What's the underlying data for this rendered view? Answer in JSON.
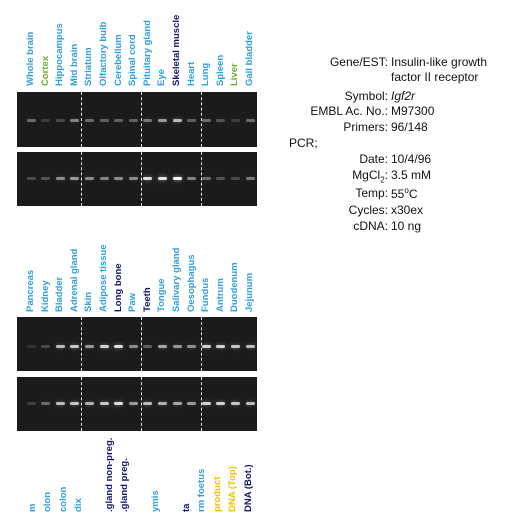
{
  "colors": {
    "blue": "#2f9fe0",
    "green": "#6fae2f",
    "navy": "#14146e",
    "gold": "#f2c200",
    "gel_bg": "#1b1b1b",
    "band": "#ffffff"
  },
  "panel_top": {
    "lanes": [
      {
        "label": "Whole brain",
        "color": "blue"
      },
      {
        "label": "Cortex",
        "color": "green"
      },
      {
        "label": "Hippocampus",
        "color": "blue"
      },
      {
        "label": "Mid brain",
        "color": "blue"
      },
      {
        "label": "Striatum",
        "color": "blue"
      },
      {
        "label": "Olfactory bulb",
        "color": "blue"
      },
      {
        "label": "Cerebellum",
        "color": "blue"
      },
      {
        "label": "Spinal cord",
        "color": "blue"
      },
      {
        "label": "Pituitary gland",
        "color": "blue"
      },
      {
        "label": "Eye",
        "color": "blue"
      },
      {
        "label": "Skeletal muscle",
        "color": "navy"
      },
      {
        "label": "Heart",
        "color": "blue"
      },
      {
        "label": "Lung",
        "color": "blue"
      },
      {
        "label": "Spleen",
        "color": "blue"
      },
      {
        "label": "Liver",
        "color": "green"
      },
      {
        "label": "Gall bladder",
        "color": "blue"
      }
    ],
    "gel1_intensity": [
      0.35,
      0.15,
      0.2,
      0.45,
      0.35,
      0.3,
      0.3,
      0.3,
      0.4,
      0.55,
      0.7,
      0.3,
      0.35,
      0.25,
      0.15,
      0.35
    ],
    "gel2_intensity": [
      0.2,
      0.25,
      0.5,
      0.55,
      0.5,
      0.45,
      0.5,
      0.5,
      0.85,
      0.9,
      1.0,
      0.45,
      0.35,
      0.25,
      0.2,
      0.4
    ]
  },
  "panel_bottom": {
    "lanes": [
      {
        "label": "Pancreas",
        "color": "blue"
      },
      {
        "label": "Kidney",
        "color": "blue"
      },
      {
        "label": "Bladder",
        "color": "blue"
      },
      {
        "label": "Adrenal gland",
        "color": "blue"
      },
      {
        "label": "Skin",
        "color": "blue"
      },
      {
        "label": "Adipose tissue",
        "color": "blue"
      },
      {
        "label": "Long bone",
        "color": "navy"
      },
      {
        "label": "Paw",
        "color": "blue"
      },
      {
        "label": "Teeth",
        "color": "navy"
      },
      {
        "label": "Tongue",
        "color": "blue"
      },
      {
        "label": "Salivary gland",
        "color": "blue"
      },
      {
        "label": "Oesophagus",
        "color": "blue"
      },
      {
        "label": "Fundus",
        "color": "blue"
      },
      {
        "label": "Antrum",
        "color": "blue"
      },
      {
        "label": "Duodenum",
        "color": "blue"
      },
      {
        "label": "Jejunum",
        "color": "blue"
      }
    ],
    "gel1_intensity": [
      0.1,
      0.2,
      0.7,
      0.75,
      0.55,
      0.8,
      0.85,
      0.5,
      0.3,
      0.6,
      0.55,
      0.5,
      0.8,
      0.8,
      0.75,
      0.7
    ],
    "gel2_intensity": [
      0.15,
      0.35,
      0.7,
      0.75,
      0.65,
      0.75,
      0.85,
      0.55,
      0.7,
      0.65,
      0.6,
      0.55,
      0.8,
      0.8,
      0.75,
      0.7
    ]
  },
  "panel_partial": {
    "lanes": [
      {
        "label": "m",
        "color": "blue"
      },
      {
        "label": "olon",
        "color": "blue"
      },
      {
        "label": "colon",
        "color": "blue"
      },
      {
        "label": "dix",
        "color": "blue"
      },
      {
        "label": "",
        "color": "blue"
      },
      {
        "label": ".gland non-preg.",
        "color": "navy"
      },
      {
        "label": ".gland preg.",
        "color": "navy"
      },
      {
        "label": "",
        "color": "blue"
      },
      {
        "label": "ymis",
        "color": "blue"
      },
      {
        "label": "",
        "color": "blue"
      },
      {
        "label": "ta",
        "color": "navy"
      },
      {
        "label": "rm foetus",
        "color": "blue"
      },
      {
        "label": "product",
        "color": "gold"
      },
      {
        "label": "DNA (Top)",
        "color": "gold"
      },
      {
        "label": "DNA (Bot.)",
        "color": "navy"
      }
    ]
  },
  "info": {
    "gene_key": "Gene/EST:",
    "gene_val_line1": "Insulin-like growth",
    "gene_val_line2": "factor II receptor",
    "symbol_key": "Symbol:",
    "symbol_val": "Igf2r",
    "embl_key": "EMBL Ac. No.:",
    "embl_val": "M97300",
    "primers_key": "Primers:",
    "primers_val": "96/148",
    "pcr_key": "PCR;",
    "date_key": "Date:",
    "date_val": "10/4/96",
    "mgcl_key_main": "MgCl",
    "mgcl_key_sub": "2",
    "mgcl_key_colon": ":",
    "mgcl_val": "3.5 mM",
    "temp_key": "Temp:",
    "temp_val_num": "55",
    "temp_val_sup": "o",
    "temp_val_unit": "C",
    "cycles_key": "Cycles:",
    "cycles_val": "x30ex",
    "cdna_key": "cDNA:",
    "cdna_val": "10 ng"
  }
}
